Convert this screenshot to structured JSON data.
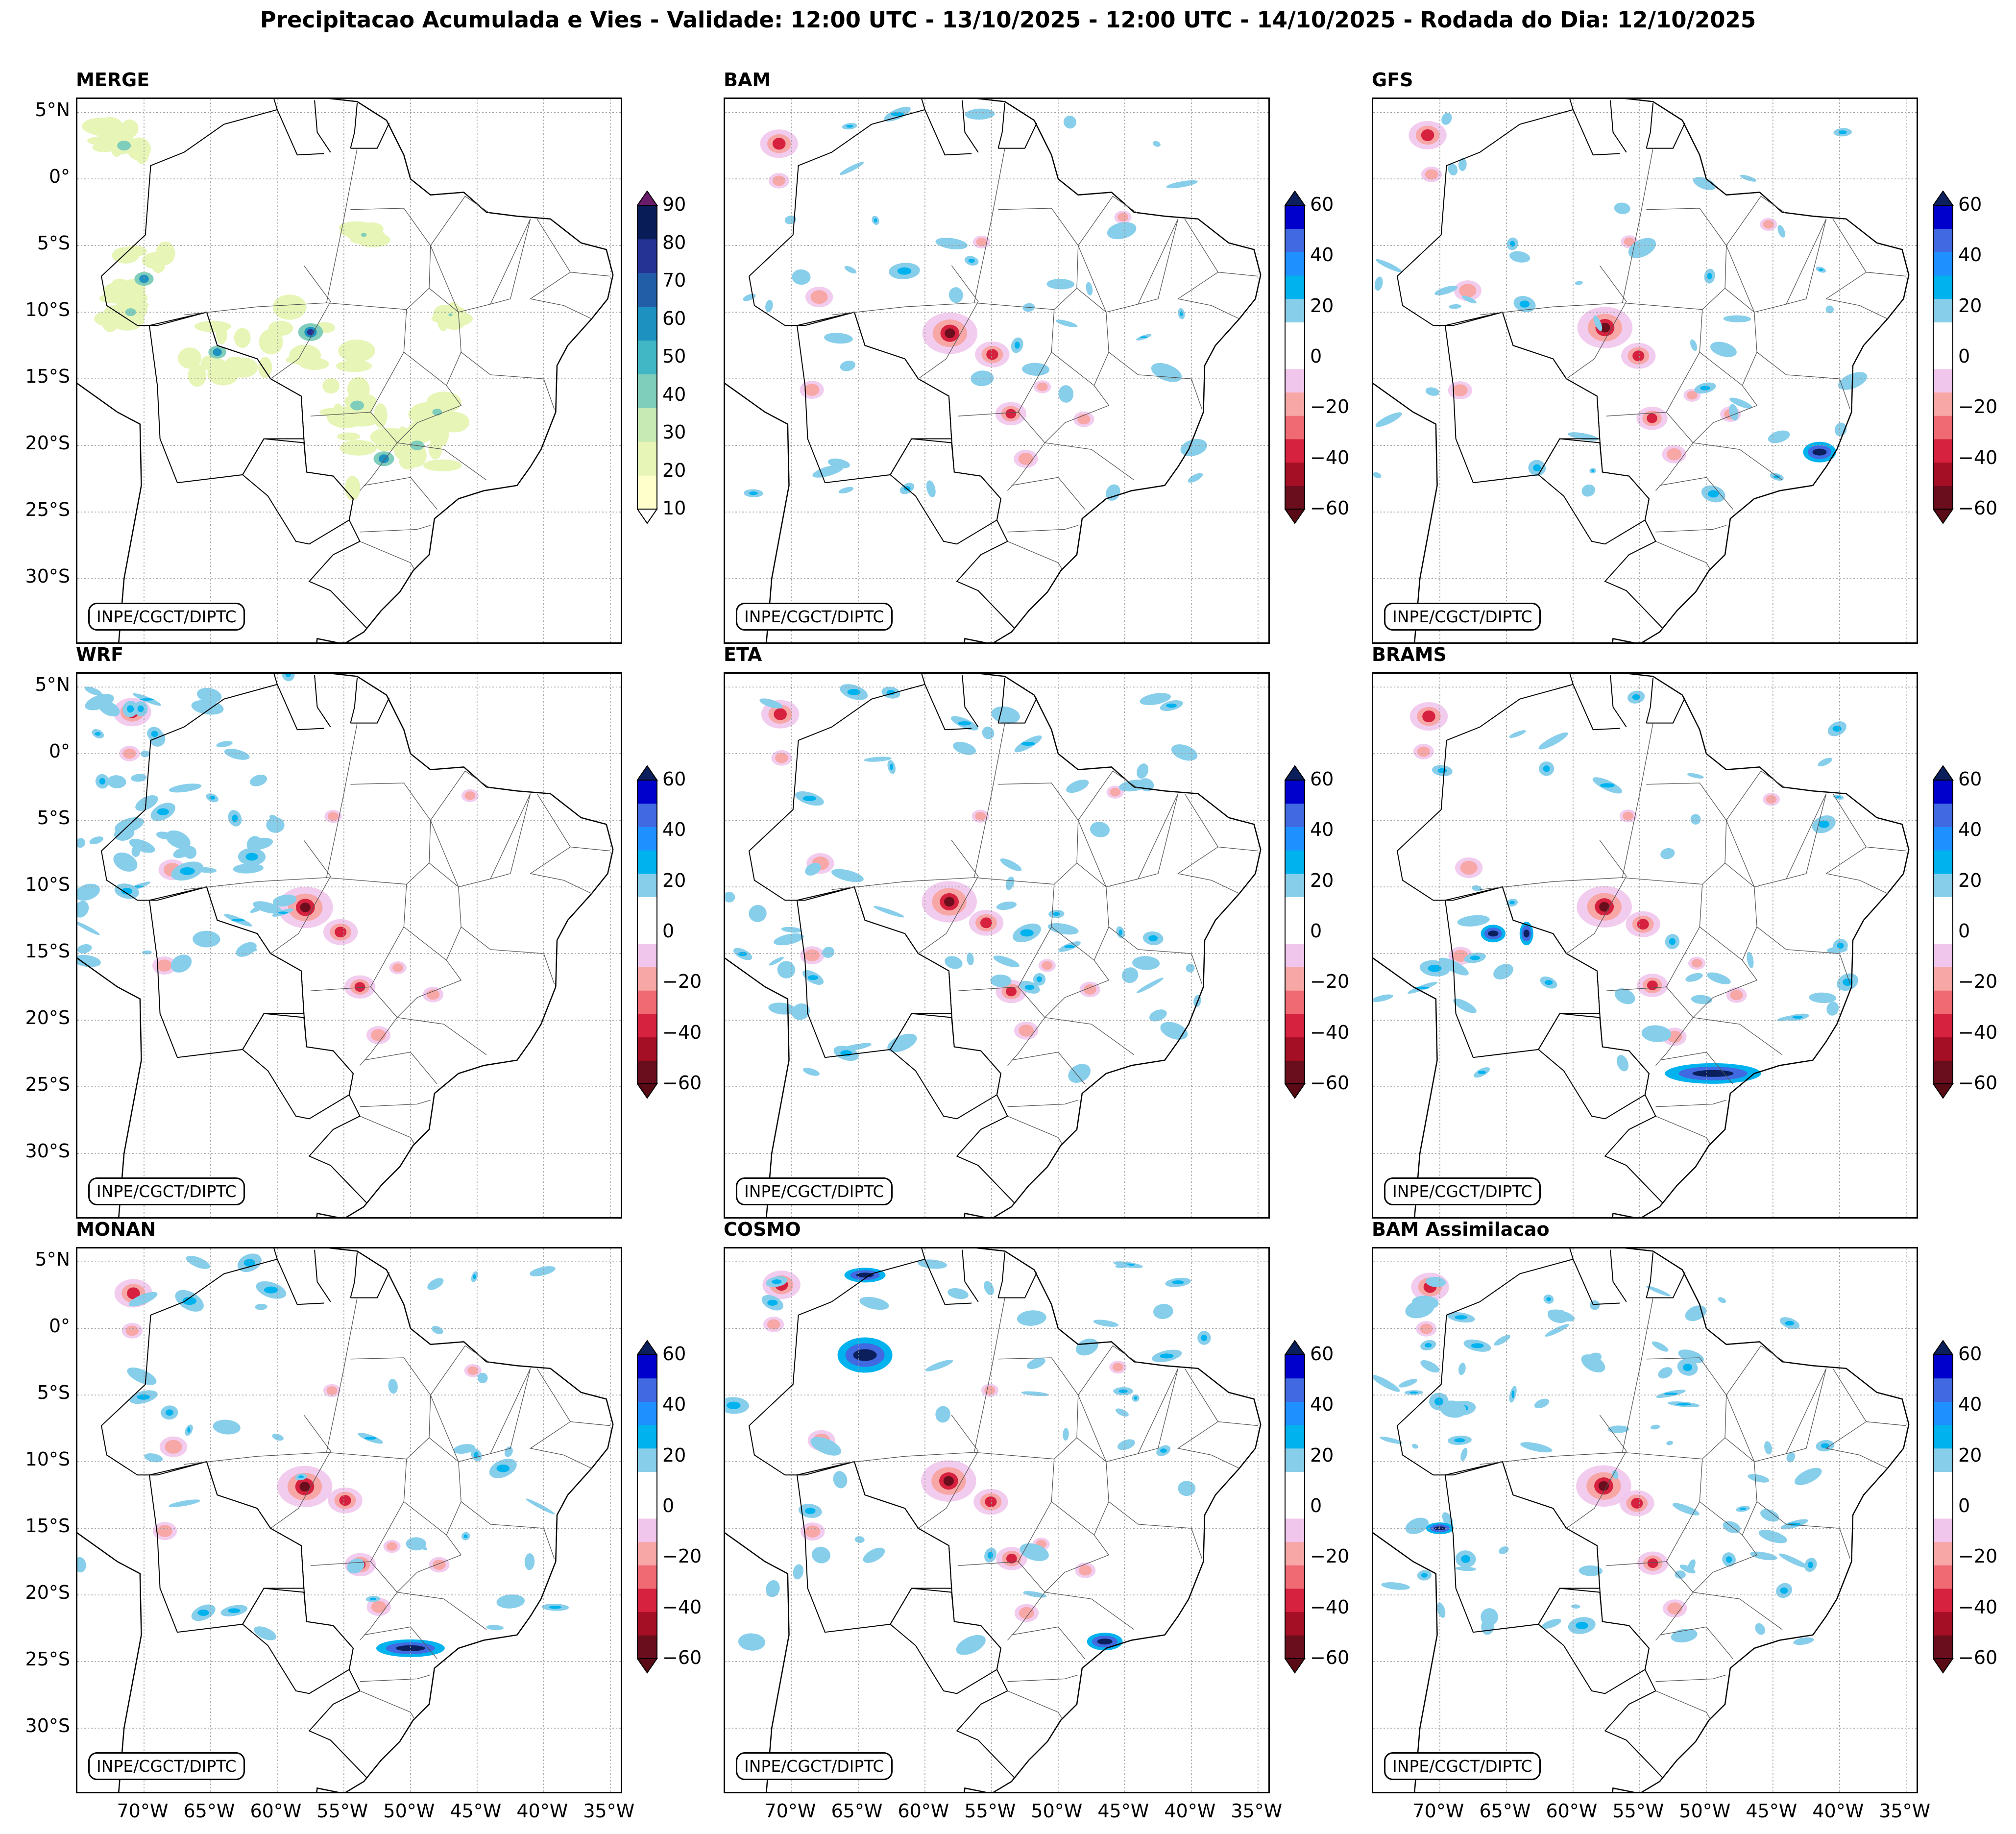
{
  "title": "Precipitacao Acumulada e Vies - Validade: 12:00 UTC - 13/10/2025 - 12:00 UTC - 14/10/2025 - Rodada do Dia: 12/10/2025",
  "credit": "INPE/CGCT/DIPTC",
  "lat_labels": [
    "5°N",
    "0°",
    "5°S",
    "10°S",
    "15°S",
    "20°S",
    "25°S",
    "30°S"
  ],
  "lon_labels": [
    "70°W",
    "65°W",
    "60°W",
    "55°W",
    "50°W",
    "45°W",
    "40°W",
    "35°W"
  ],
  "merge_scale": {
    "ticks": [
      "90",
      "80",
      "70",
      "60",
      "50",
      "40",
      "30",
      "20",
      "10"
    ],
    "colors": [
      "#ffffcc",
      "#e7f5b7",
      "#c7e9b4",
      "#7fcdbb",
      "#41b6c4",
      "#1d91c0",
      "#225ea8",
      "#253494",
      "#081d58"
    ],
    "over_color": "#6a1b6a",
    "under_color": "#ffffff"
  },
  "bias_scale": {
    "ticks": [
      "60",
      "40",
      "20",
      "0",
      "−20",
      "−40",
      "−60"
    ],
    "colors": [
      "#6a0d1d",
      "#a50f25",
      "#d6213f",
      "#ef6a73",
      "#f8a7a7",
      "#f1c6ec",
      "#ffffff",
      "#ffffff",
      "#87ceeb",
      "#00b2ee",
      "#1e90ff",
      "#4169e1",
      "#0000cd"
    ],
    "over_color": "#0a1f5c",
    "under_color": "#5a0a14"
  },
  "panels": [
    {
      "name": "MERGE",
      "kind": "merge"
    },
    {
      "name": "BAM",
      "kind": "bias"
    },
    {
      "name": "GFS",
      "kind": "bias"
    },
    {
      "name": "WRF",
      "kind": "bias"
    },
    {
      "name": "ETA",
      "kind": "bias"
    },
    {
      "name": "BRAMS",
      "kind": "bias"
    },
    {
      "name": "MONAN",
      "kind": "bias"
    },
    {
      "name": "COSMO",
      "kind": "bias"
    },
    {
      "name": "BAM Assimilacao",
      "kind": "bias"
    }
  ]
}
